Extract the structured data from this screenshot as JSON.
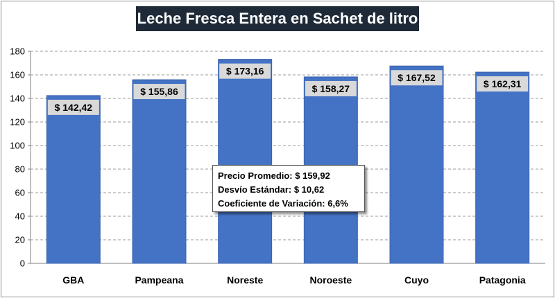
{
  "chart_data": {
    "type": "bar",
    "title": "Leche Fresca Entera en Sachet de litro",
    "categories": [
      "GBA",
      "Pampeana",
      "Noreste",
      "Noroeste",
      "Cuyo",
      "Patagonia"
    ],
    "values": [
      142.42,
      155.86,
      173.16,
      158.27,
      167.52,
      162.31
    ],
    "data_labels": [
      "$ 142,42",
      "$ 155,86",
      "$ 173,16",
      "$ 158,27",
      "$ 167,52",
      "$ 162,31"
    ],
    "ylim": [
      0,
      180
    ],
    "yticks": [
      0,
      20,
      40,
      60,
      80,
      100,
      120,
      140,
      160,
      180
    ],
    "xlabel": "",
    "ylabel": "",
    "grid": true,
    "legend": "none",
    "bar_color": "#4472c4",
    "title_bg_color": "#1f2a38"
  },
  "stats": {
    "lines": [
      "Precio Promedio: $ 159,92",
      "Desvío Estándar: $ 10,62",
      "Coeficiente de Variación: 6,6%"
    ]
  }
}
